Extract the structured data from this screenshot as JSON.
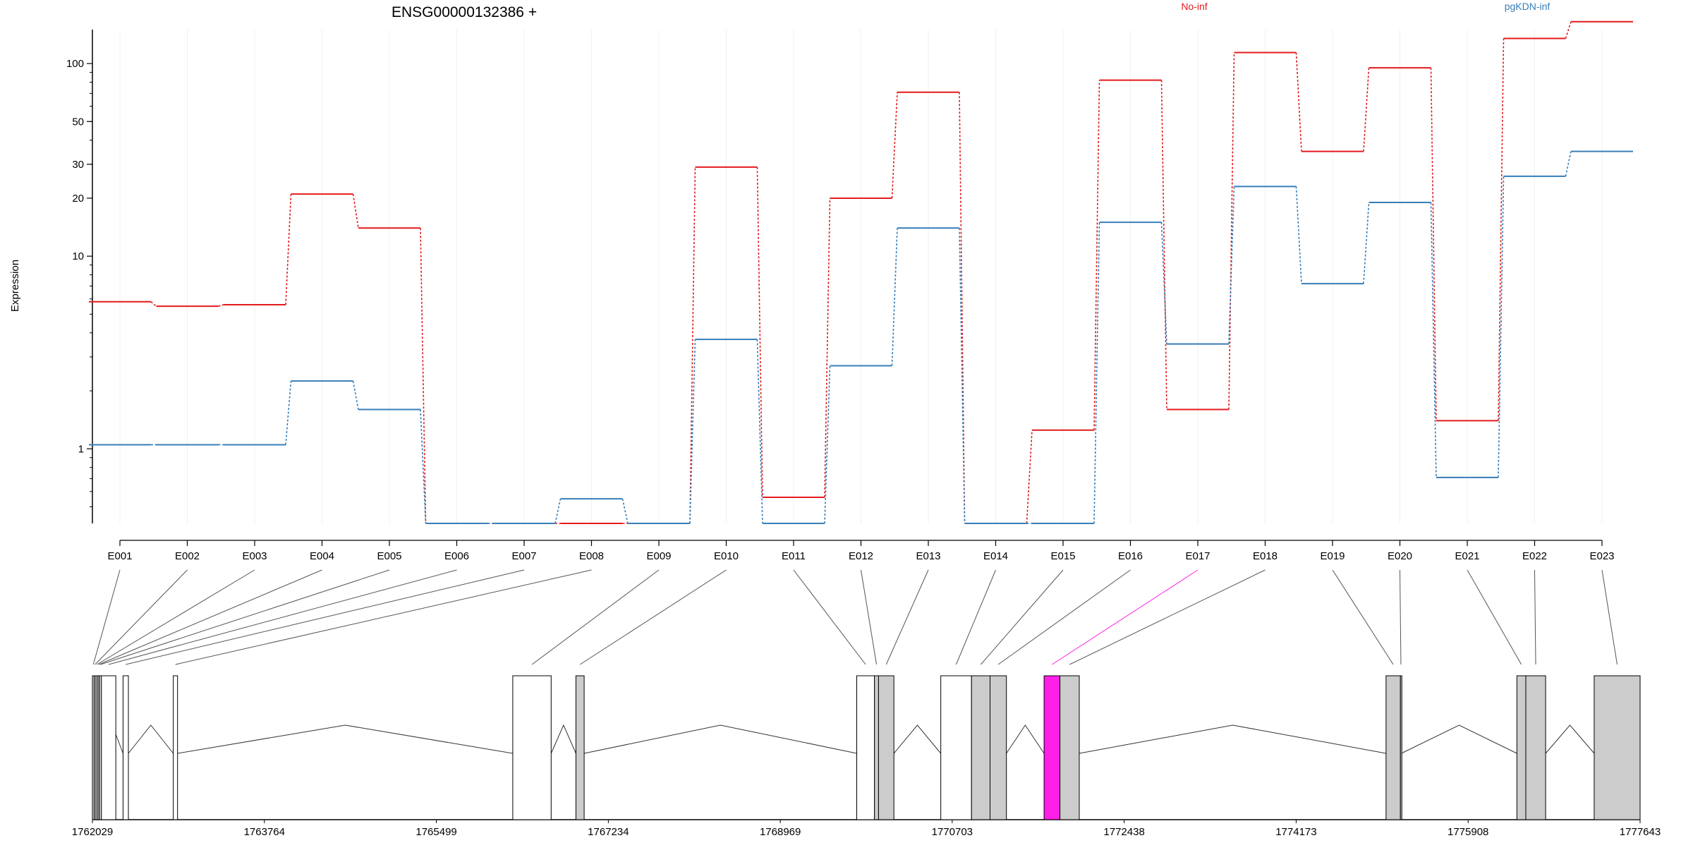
{
  "chart_data": {
    "type": "line",
    "title": "ENSG00000132386 +",
    "ylabel": "Expression",
    "xlabel": "",
    "y_scale": "log",
    "ylim": [
      0.41,
      150
    ],
    "y_ticks": [
      1,
      10,
      20,
      30,
      50,
      100
    ],
    "grid": "vertical-light",
    "legend_placement": "top",
    "categories": [
      "E001",
      "E002",
      "E003",
      "E004",
      "E005",
      "E006",
      "E007",
      "E008",
      "E009",
      "E010",
      "E011",
      "E012",
      "E013",
      "E014",
      "E015",
      "E016",
      "E017",
      "E018",
      "E019",
      "E020",
      "E021",
      "E022",
      "E023"
    ],
    "series": [
      {
        "name": "No-inf",
        "color": "#e41a1c",
        "values": [
          5.8,
          5.5,
          5.6,
          21,
          14,
          0.41,
          0.41,
          0.41,
          0.41,
          29,
          0.56,
          20,
          71,
          0.41,
          1.25,
          82,
          1.6,
          114,
          35,
          95,
          1.4,
          135,
          165
        ]
      },
      {
        "name": "pgKDN-inf",
        "color": "#377eb8",
        "values": [
          1.05,
          1.05,
          1.05,
          2.25,
          1.6,
          0.41,
          0.41,
          0.55,
          0.41,
          3.7,
          0.41,
          2.7,
          14,
          0.41,
          0.41,
          15,
          3.5,
          23,
          7.2,
          19,
          0.71,
          26,
          35
        ]
      }
    ],
    "gene_model": {
      "coordinate_ticks": [
        1762029,
        1763764,
        1765499,
        1767234,
        1768969,
        1770703,
        1772438,
        1774173,
        1775908,
        1777643
      ],
      "range": [
        1762029,
        1777643
      ],
      "tested_color": "#cccccc",
      "untested_color": "#ffffff",
      "highlight_color": "#ff1fe6",
      "highlighted_exon": "E017",
      "exon_bins": [
        {
          "id": "E001",
          "start": 1762029,
          "end": 1762047,
          "tested": true
        },
        {
          "id": "E002",
          "start": 1762047,
          "end": 1762065,
          "tested": true
        },
        {
          "id": "E003",
          "start": 1762065,
          "end": 1762085,
          "tested": true
        },
        {
          "id": "E004",
          "start": 1762085,
          "end": 1762102,
          "tested": true
        },
        {
          "id": "E005",
          "start": 1762102,
          "end": 1762120,
          "tested": false
        },
        {
          "id": "E006",
          "start": 1762120,
          "end": 1762265,
          "tested": false
        },
        {
          "id": "E007",
          "start": 1762338,
          "end": 1762392,
          "tested": false
        },
        {
          "id": "E008",
          "start": 1762845,
          "end": 1762888,
          "tested": false
        },
        {
          "id": "E009",
          "start": 1766270,
          "end": 1766657,
          "tested": false
        },
        {
          "id": "E010",
          "start": 1766907,
          "end": 1766990,
          "tested": true
        },
        {
          "id": "E011",
          "start": 1769740,
          "end": 1769919,
          "tested": false
        },
        {
          "id": "E012",
          "start": 1769919,
          "end": 1769960,
          "tested": true
        },
        {
          "id": "E013",
          "start": 1769960,
          "end": 1770115,
          "tested": true
        },
        {
          "id": "E014",
          "start": 1770588,
          "end": 1770898,
          "tested": false
        },
        {
          "id": "E015",
          "start": 1770898,
          "end": 1771085,
          "tested": true
        },
        {
          "id": "E016",
          "start": 1771085,
          "end": 1771250,
          "tested": true
        },
        {
          "id": "E017",
          "start": 1771630,
          "end": 1771790,
          "tested": true
        },
        {
          "id": "E018",
          "start": 1771790,
          "end": 1771985,
          "tested": true
        },
        {
          "id": "E019",
          "start": 1775080,
          "end": 1775225,
          "tested": true
        },
        {
          "id": "E020",
          "start": 1775225,
          "end": 1775235,
          "tested": true
        },
        {
          "id": "E021",
          "start": 1776400,
          "end": 1776490,
          "tested": true
        },
        {
          "id": "E022",
          "start": 1776490,
          "end": 1776690,
          "tested": true
        },
        {
          "id": "E023",
          "start": 1777180,
          "end": 1777643,
          "tested": true
        }
      ],
      "introns": [
        [
          1762120,
          1762338
        ],
        [
          1762392,
          1762845
        ],
        [
          1762888,
          1766270
        ],
        [
          1766657,
          1766907
        ],
        [
          1766990,
          1769740
        ],
        [
          1770115,
          1770588
        ],
        [
          1771250,
          1771630
        ],
        [
          1771985,
          1775080
        ],
        [
          1775235,
          1776400
        ],
        [
          1776690,
          1777180
        ]
      ]
    }
  }
}
